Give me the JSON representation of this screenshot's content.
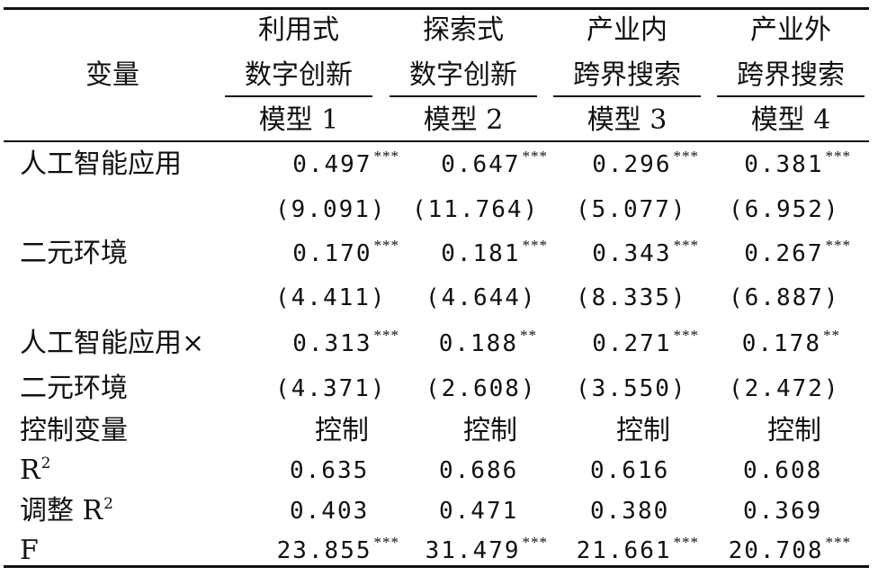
{
  "header": {
    "stub": "变量",
    "columns": [
      {
        "line1": "利用式",
        "line2": "数字创新",
        "model": "模型 1"
      },
      {
        "line1": "探索式",
        "line2": "数字创新",
        "model": "模型 2"
      },
      {
        "line1": "产业内",
        "line2": "跨界搜索",
        "model": "模型 3"
      },
      {
        "line1": "产业外",
        "line2": "跨界搜索",
        "model": "模型 4"
      }
    ]
  },
  "rows": {
    "ai": {
      "label": "人工智能应用",
      "coef": [
        {
          "v": "0.497",
          "sig": "***"
        },
        {
          "v": "0.647",
          "sig": "***"
        },
        {
          "v": "0.296",
          "sig": "***"
        },
        {
          "v": "0.381",
          "sig": "***"
        }
      ],
      "t": [
        "(9.091)",
        "(11.764)",
        "(5.077)",
        "(6.952)"
      ]
    },
    "env": {
      "label": "二元环境",
      "coef": [
        {
          "v": "0.170",
          "sig": "***"
        },
        {
          "v": "0.181",
          "sig": "***"
        },
        {
          "v": "0.343",
          "sig": "***"
        },
        {
          "v": "0.267",
          "sig": "***"
        }
      ],
      "t": [
        "(4.411)",
        "(4.644)",
        "(8.335)",
        "(6.887)"
      ]
    },
    "inter": {
      "label_line1": "人工智能应用×",
      "label_line2": "二元环境",
      "coef": [
        {
          "v": "0.313",
          "sig": "***"
        },
        {
          "v": "0.188",
          "sig": "**"
        },
        {
          "v": "0.271",
          "sig": "***"
        },
        {
          "v": "0.178",
          "sig": "**"
        }
      ],
      "t": [
        "(4.371)",
        "(2.608)",
        "(3.550)",
        "(2.472)"
      ]
    },
    "control": {
      "label": "控制变量",
      "values": [
        "控制",
        "控制",
        "控制",
        "控制"
      ]
    },
    "r2": {
      "label": "R",
      "label_sup": "2",
      "values": [
        "0.635",
        "0.686",
        "0.616",
        "0.608"
      ]
    },
    "adjr2": {
      "label": "调整 R",
      "label_sup": "2",
      "values": [
        "0.403",
        "0.471",
        "0.380",
        "0.369"
      ]
    },
    "f": {
      "label": "F",
      "values": [
        {
          "v": "23.855",
          "sig": "***"
        },
        {
          "v": "31.479",
          "sig": "***"
        },
        {
          "v": "21.661",
          "sig": "***"
        },
        {
          "v": "20.708",
          "sig": "***"
        }
      ]
    }
  }
}
